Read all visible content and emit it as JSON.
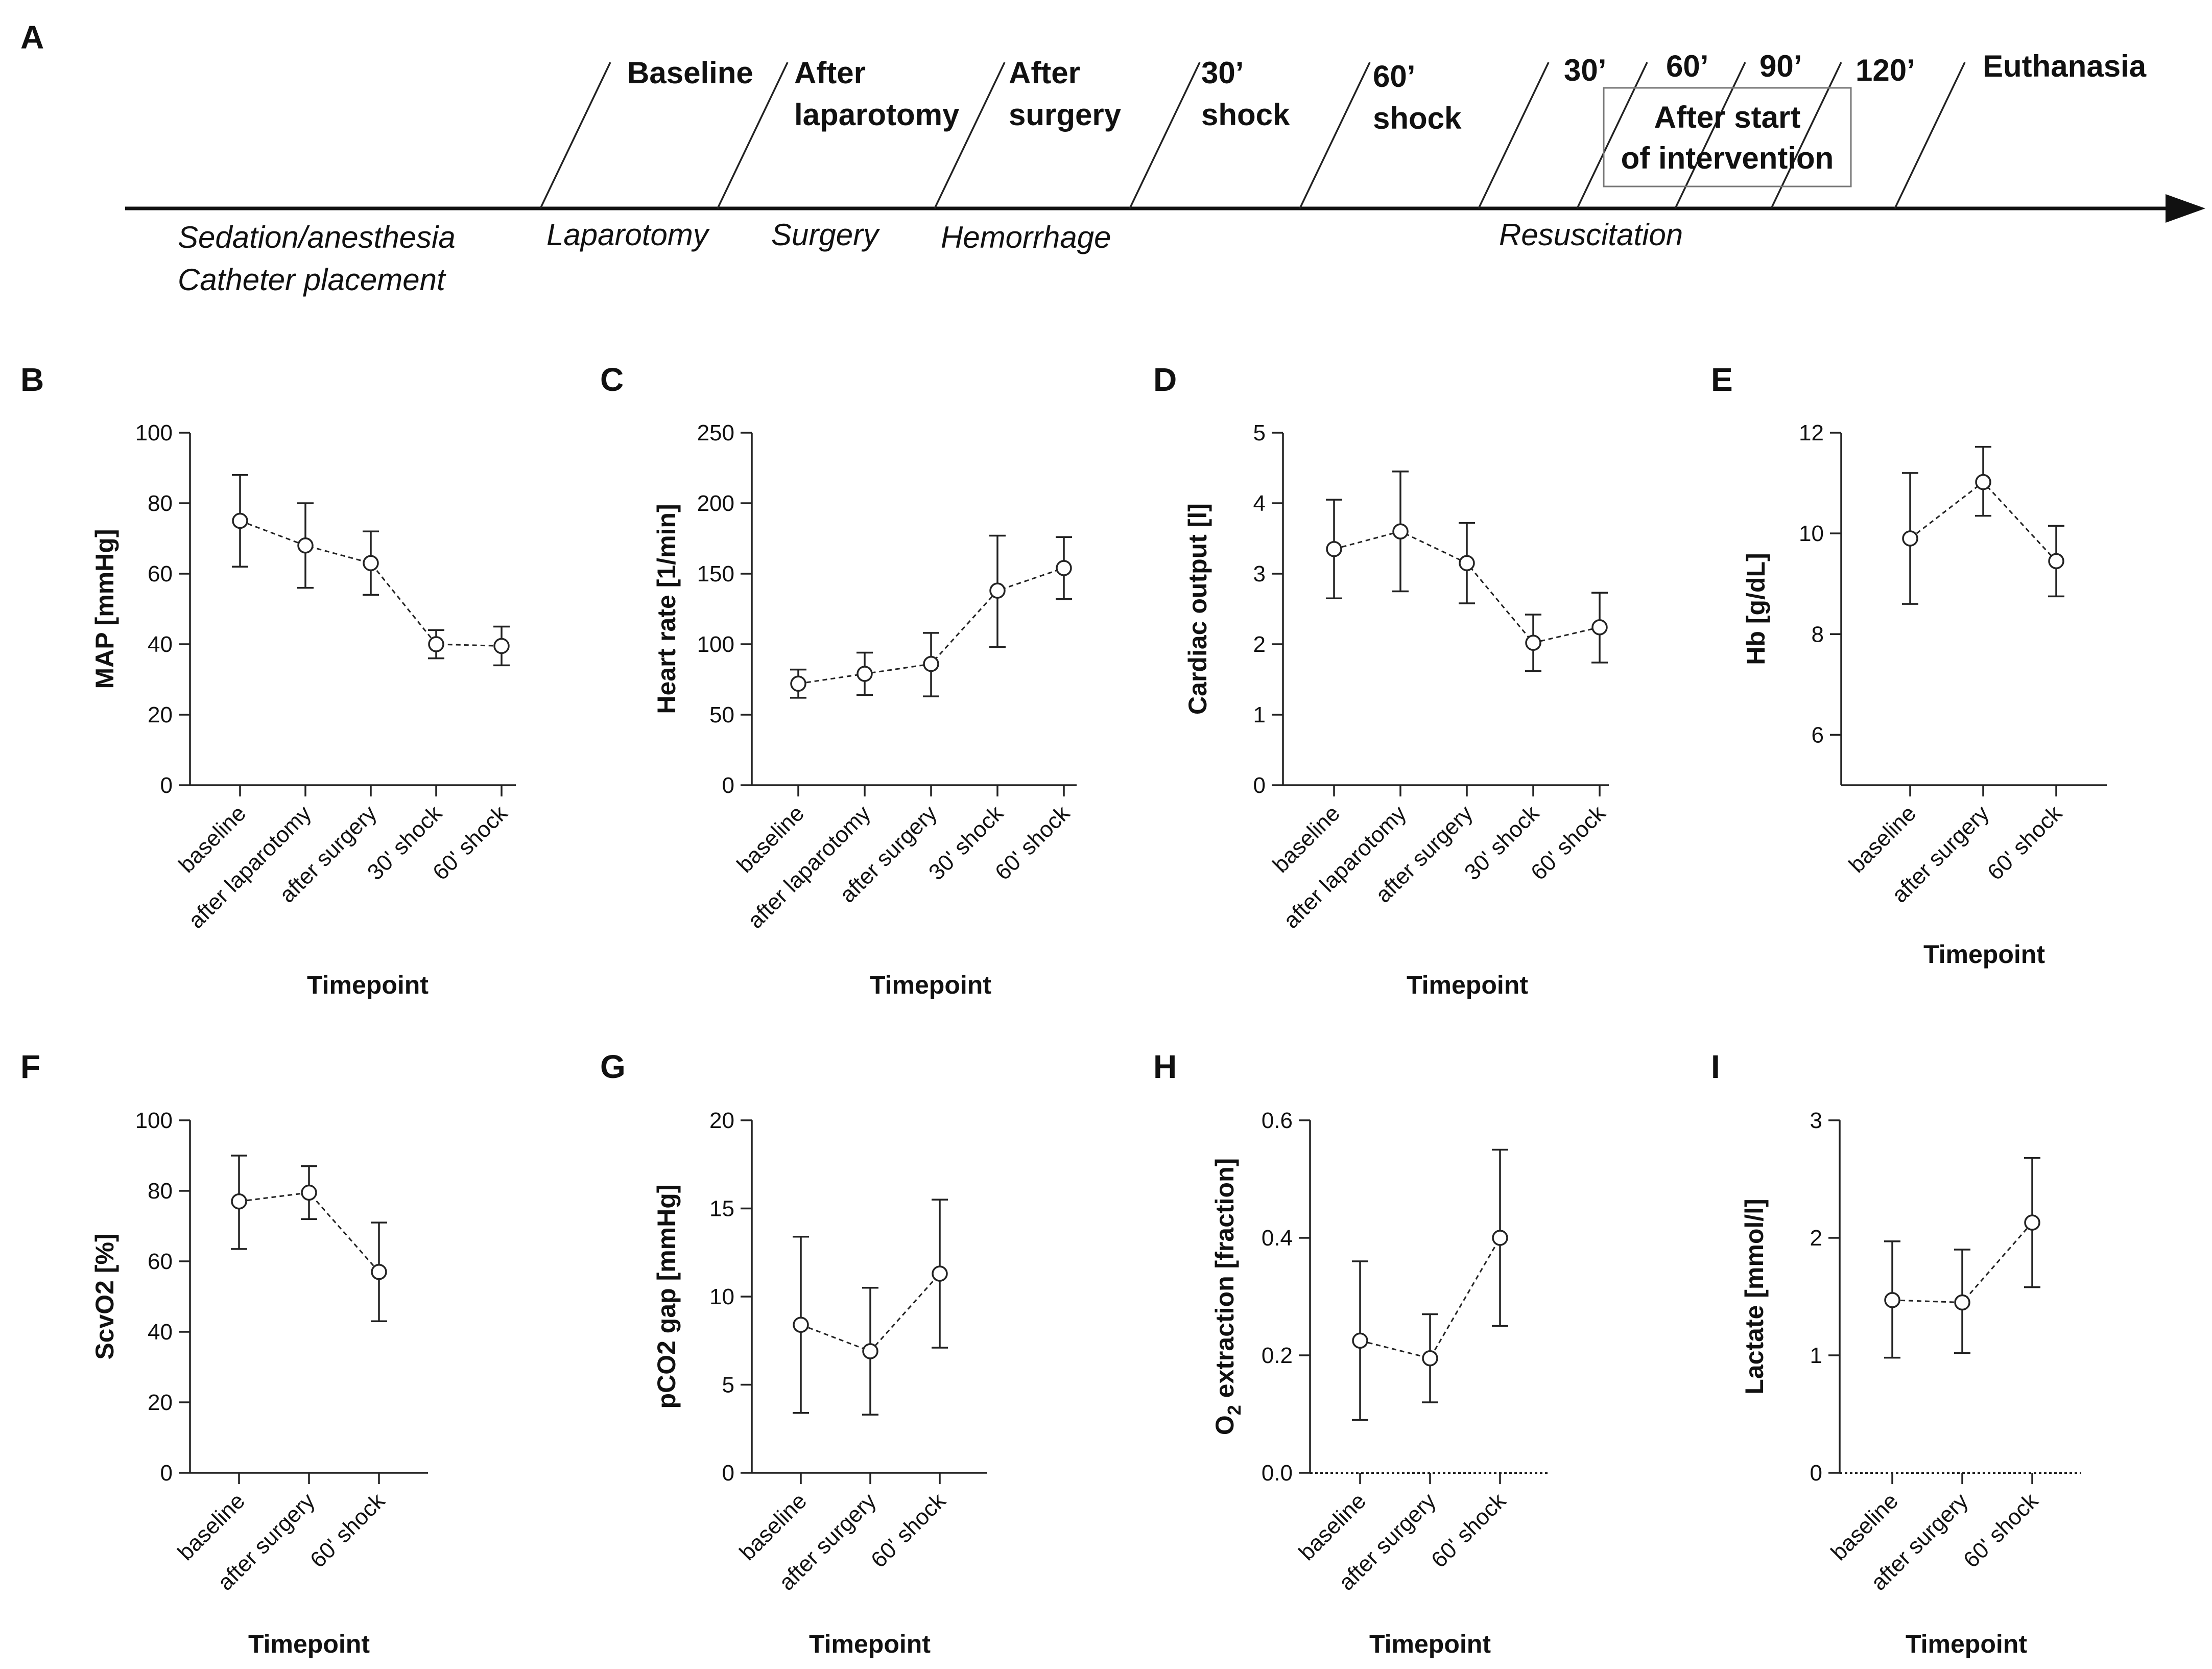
{
  "panel_letters": [
    "A",
    "B",
    "C",
    "D",
    "E",
    "F",
    "G",
    "H",
    "I"
  ],
  "timeline": {
    "events": [
      {
        "lines": [
          "Baseline"
        ]
      },
      {
        "lines": [
          "After",
          "laparotomy"
        ]
      },
      {
        "lines": [
          "After",
          "surgery"
        ]
      },
      {
        "lines": [
          "30’",
          "shock"
        ]
      },
      {
        "lines": [
          "60’",
          "shock"
        ]
      },
      {
        "lines": [
          "30’"
        ]
      },
      {
        "lines": [
          "60’"
        ]
      },
      {
        "lines": [
          "90’"
        ]
      },
      {
        "lines": [
          "120’"
        ]
      },
      {
        "lines": [
          "Euthanasia"
        ]
      }
    ],
    "intervention_box": [
      "After start",
      "of intervention"
    ],
    "phases": [
      {
        "lines": [
          "Sedation/anesthesia",
          "Catheter placement"
        ]
      },
      {
        "lines": [
          "Laparotomy"
        ]
      },
      {
        "lines": [
          "Surgery"
        ]
      },
      {
        "lines": [
          "Hemorrhage"
        ]
      },
      {
        "lines": [
          "Resuscitation"
        ]
      }
    ]
  },
  "chart_data": [
    {
      "panel": "B",
      "type": "line",
      "categories": [
        "baseline",
        "after laparotomy",
        "after surgery",
        "30' shock",
        "60' shock"
      ],
      "values": [
        75,
        68,
        63,
        40,
        39.5
      ],
      "error_low": [
        62,
        56,
        54,
        36,
        34
      ],
      "error_high": [
        88,
        80,
        72,
        44,
        45
      ],
      "ylim": [
        0,
        100
      ],
      "yticks": [
        0,
        20,
        40,
        60,
        80,
        100
      ],
      "ytick_labels": [
        "0",
        "20",
        "40",
        "60",
        "80",
        "100"
      ],
      "ylabel": "MAP [mmHg]",
      "xlabel": "Timepoint",
      "dotted_zero": false
    },
    {
      "panel": "C",
      "type": "line",
      "categories": [
        "baseline",
        "after laparotomy",
        "after surgery",
        "30' shock",
        "60' shock"
      ],
      "values": [
        72,
        79,
        86,
        138,
        154
      ],
      "error_low": [
        62,
        64,
        63,
        98,
        132
      ],
      "error_high": [
        82,
        94,
        108,
        177,
        176
      ],
      "ylim": [
        0,
        250
      ],
      "yticks": [
        0,
        50,
        100,
        150,
        200,
        250
      ],
      "ytick_labels": [
        "0",
        "50",
        "100",
        "150",
        "200",
        "250"
      ],
      "ylabel": "Heart rate [1/min]",
      "xlabel": "Timepoint",
      "dotted_zero": false
    },
    {
      "panel": "D",
      "type": "line",
      "categories": [
        "baseline",
        "after laparotomy",
        "after surgery",
        "30' shock",
        "60' shock"
      ],
      "values": [
        3.35,
        3.6,
        3.15,
        2.02,
        2.24
      ],
      "error_low": [
        2.65,
        2.75,
        2.58,
        1.62,
        1.74
      ],
      "error_high": [
        4.05,
        4.45,
        3.72,
        2.42,
        2.73
      ],
      "ylim": [
        0,
        5
      ],
      "yticks": [
        0,
        1,
        2,
        3,
        4,
        5
      ],
      "ytick_labels": [
        "0",
        "1",
        "2",
        "3",
        "4",
        "5"
      ],
      "ylabel": "Cardiac output [l]",
      "xlabel": "Timepoint",
      "dotted_zero": false
    },
    {
      "panel": "E",
      "type": "line",
      "categories": [
        "baseline",
        "after surgery",
        "60' shock"
      ],
      "values": [
        9.9,
        11.02,
        9.45
      ],
      "error_low": [
        8.6,
        10.35,
        8.75
      ],
      "error_high": [
        11.2,
        11.72,
        10.15
      ],
      "ylim": [
        5,
        12
      ],
      "yticks": [
        6,
        8,
        10,
        12
      ],
      "ytick_labels": [
        "6",
        "8",
        "10",
        "12"
      ],
      "ylabel": "Hb [g/dL]",
      "xlabel": "Timepoint",
      "dotted_zero": false
    },
    {
      "panel": "F",
      "type": "line",
      "categories": [
        "baseline",
        "after surgery",
        "60' shock"
      ],
      "values": [
        77,
        79.5,
        57
      ],
      "error_low": [
        63.5,
        72,
        43
      ],
      "error_high": [
        90,
        87,
        71
      ],
      "ylim": [
        0,
        100
      ],
      "yticks": [
        0,
        20,
        40,
        60,
        80,
        100
      ],
      "ytick_labels": [
        "0",
        "20",
        "40",
        "60",
        "80",
        "100"
      ],
      "ylabel": "ScvO2 [%]",
      "xlabel": "Timepoint",
      "dotted_zero": false
    },
    {
      "panel": "G",
      "type": "line",
      "categories": [
        "baseline",
        "after surgery",
        "60' shock"
      ],
      "values": [
        8.4,
        6.9,
        11.3
      ],
      "error_low": [
        3.4,
        3.3,
        7.1
      ],
      "error_high": [
        13.4,
        10.5,
        15.5
      ],
      "ylim": [
        0,
        20
      ],
      "yticks": [
        0,
        5,
        10,
        15,
        20
      ],
      "ytick_labels": [
        "0",
        "5",
        "10",
        "15",
        "20"
      ],
      "ylabel": "pCO2 gap [mmHg]",
      "xlabel": "Timepoint",
      "dotted_zero": false
    },
    {
      "panel": "H",
      "type": "line",
      "categories": [
        "baseline",
        "after surgery",
        "60' shock"
      ],
      "values": [
        0.225,
        0.195,
        0.4
      ],
      "error_low": [
        0.09,
        0.12,
        0.25
      ],
      "error_high": [
        0.36,
        0.27,
        0.55
      ],
      "ylim": [
        0,
        0.6
      ],
      "yticks": [
        0,
        0.2,
        0.4,
        0.6
      ],
      "ytick_labels": [
        "0.0",
        "0.2",
        "0.4",
        "0.6"
      ],
      "ylabel_main": "O",
      "ylabel_sub": "2",
      "ylabel_rest": " extraction [fraction]",
      "xlabel": "Timepoint",
      "dotted_zero": true
    },
    {
      "panel": "I",
      "type": "line",
      "categories": [
        "baseline",
        "after surgery",
        "60' shock"
      ],
      "values": [
        1.47,
        1.45,
        2.13
      ],
      "error_low": [
        0.98,
        1.02,
        1.58
      ],
      "error_high": [
        1.97,
        1.9,
        2.68
      ],
      "ylim": [
        0,
        3
      ],
      "yticks": [
        0,
        1,
        2,
        3
      ],
      "ytick_labels": [
        "0",
        "1",
        "2",
        "3"
      ],
      "ylabel": "Lactate [mmol/l]",
      "xlabel": "Timepoint",
      "dotted_zero": true
    }
  ]
}
